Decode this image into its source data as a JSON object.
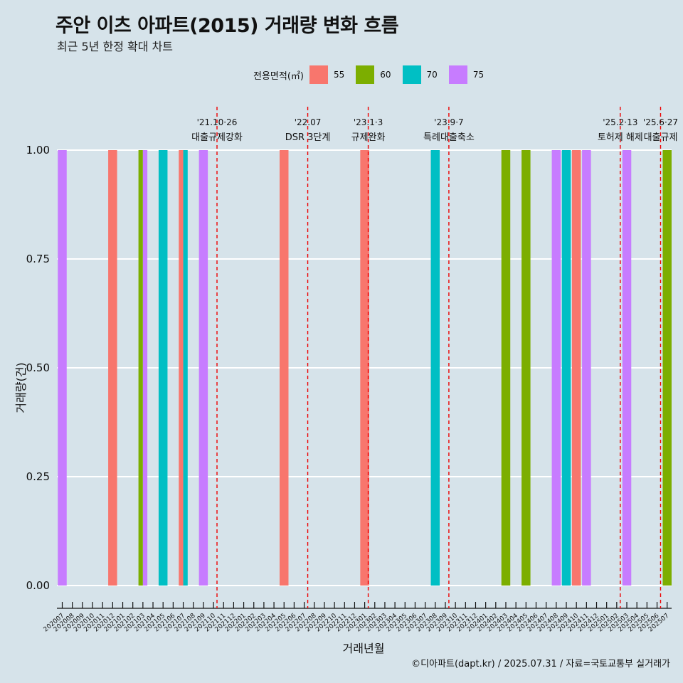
{
  "title": "주안 이츠 아파트(2015) 거래량 변화 흐름",
  "subtitle": "최근 5년 한정 확대 차트",
  "caption": "©디아파트(dapt.kr) / 2025.07.31 / 자료=국토교통부 실거래가",
  "legend": {
    "title": "전용면적(㎡)",
    "items": [
      {
        "label": "55",
        "color": "#f8766d"
      },
      {
        "label": "60",
        "color": "#7cae00"
      },
      {
        "label": "70",
        "color": "#00bfc4"
      },
      {
        "label": "75",
        "color": "#c77cff"
      }
    ]
  },
  "chart_data": {
    "type": "bar",
    "title": "주안 이츠 아파트(2015) 거래량 변화 흐름",
    "xlabel": "거래년월",
    "ylabel": "거래량(건)",
    "ylim": [
      0,
      1
    ],
    "yticks": [
      "0.00",
      "0.25",
      "0.50",
      "0.75",
      "1.00"
    ],
    "categories": [
      "202007",
      "202008",
      "202009",
      "202010",
      "202011",
      "202012",
      "202101",
      "202102",
      "202103",
      "202104",
      "202105",
      "202106",
      "202107",
      "202108",
      "202109",
      "202110",
      "202111",
      "202112",
      "202201",
      "202202",
      "202203",
      "202204",
      "202205",
      "202206",
      "202207",
      "202208",
      "202209",
      "202210",
      "202211",
      "202212",
      "202301",
      "202302",
      "202303",
      "202304",
      "202305",
      "202306",
      "202307",
      "202308",
      "202309",
      "202310",
      "202311",
      "202312",
      "202401",
      "202402",
      "202403",
      "202404",
      "202405",
      "202406",
      "202407",
      "202408",
      "202409",
      "202410",
      "202411",
      "202412",
      "202501",
      "202502",
      "202503",
      "202504",
      "202505",
      "202506",
      "202507"
    ],
    "bars": [
      {
        "month": "202007",
        "area": "75",
        "value": 1
      },
      {
        "month": "202012",
        "area": "55",
        "value": 1
      },
      {
        "month": "202103",
        "area": "60",
        "value": 1
      },
      {
        "month": "202103",
        "area": "75",
        "value": 1
      },
      {
        "month": "202105",
        "area": "70",
        "value": 1
      },
      {
        "month": "202107",
        "area": "55",
        "value": 1
      },
      {
        "month": "202107",
        "area": "70",
        "value": 1
      },
      {
        "month": "202109",
        "area": "75",
        "value": 1
      },
      {
        "month": "202205",
        "area": "55",
        "value": 1
      },
      {
        "month": "202301",
        "area": "55",
        "value": 1
      },
      {
        "month": "202308",
        "area": "70",
        "value": 1
      },
      {
        "month": "202403",
        "area": "60",
        "value": 1
      },
      {
        "month": "202405",
        "area": "60",
        "value": 1
      },
      {
        "month": "202408",
        "area": "75",
        "value": 1
      },
      {
        "month": "202409",
        "area": "70",
        "value": 1
      },
      {
        "month": "202410",
        "area": "55",
        "value": 1
      },
      {
        "month": "202411",
        "area": "75",
        "value": 1
      },
      {
        "month": "202503",
        "area": "75",
        "value": 1
      },
      {
        "month": "202507",
        "area": "60",
        "value": 1
      }
    ],
    "events": [
      {
        "month": "202110",
        "date": "'21.10·26",
        "label": "대출규제강화"
      },
      {
        "month": "202207",
        "date": "'22.07",
        "label": "DSR 3단계"
      },
      {
        "month": "202301",
        "date": "'23.1·3",
        "label": "규제완화"
      },
      {
        "month": "202309",
        "date": "'23.9·7",
        "label": "특례대출축소"
      },
      {
        "month": "202502",
        "date": "'25.2·13",
        "label": "토허제 해제"
      },
      {
        "month": "202506",
        "date": "'25.6·27",
        "label": "대출규제"
      }
    ]
  }
}
